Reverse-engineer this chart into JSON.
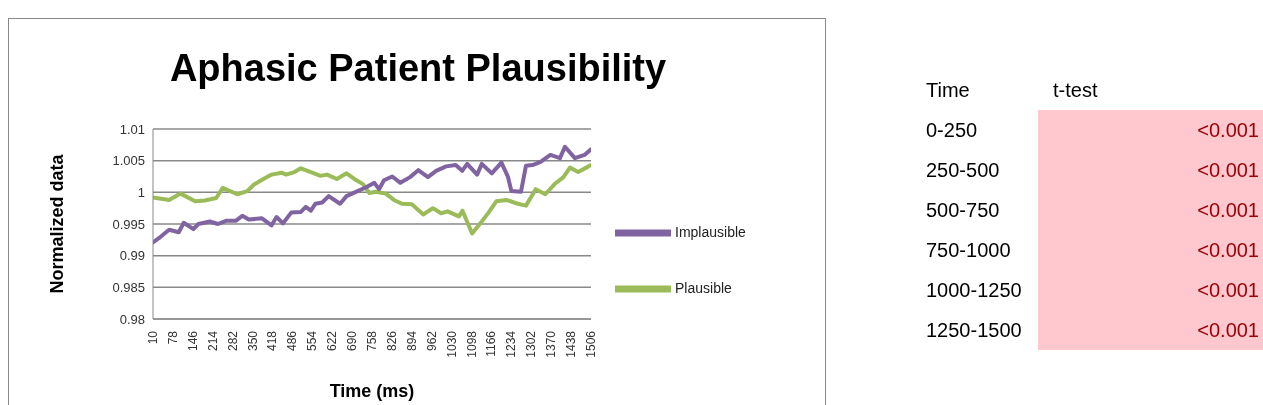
{
  "chart_data": [
    {
      "type": "line",
      "title": "Aphasic Patient Plausibility",
      "xlabel": "Time (ms)",
      "ylabel": "Normalized data",
      "xlim": [
        10,
        1506
      ],
      "xticks": [
        10,
        78,
        146,
        214,
        282,
        350,
        418,
        486,
        554,
        622,
        690,
        758,
        826,
        894,
        962,
        1030,
        1098,
        1166,
        1234,
        1302,
        1370,
        1438,
        1506
      ],
      "ylim": [
        0.98,
        1.01
      ],
      "yticks": [
        0.98,
        0.985,
        0.99,
        0.995,
        1,
        1.005,
        1.01
      ],
      "grid": "y",
      "legend": "right",
      "marker": "none",
      "line_style": "solid",
      "series": [
        {
          "name": "Plausible",
          "color": "#9bbb59",
          "x": [
            10,
            65,
            104,
            154,
            187,
            226,
            248,
            298,
            332,
            354,
            387,
            415,
            449,
            465,
            493,
            515,
            549,
            582,
            604,
            638,
            671,
            705,
            727,
            749,
            771,
            805,
            833,
            860,
            894,
            933,
            966,
            994,
            1016,
            1055,
            1067,
            1100,
            1128,
            1156,
            1183,
            1217,
            1256,
            1284,
            1317,
            1350,
            1384,
            1412,
            1434,
            1462,
            1490,
            1506
          ],
          "values": [
            0.9992,
            0.9988,
            0.9998,
            0.9986,
            0.9987,
            0.9991,
            1.0007,
            0.9997,
            1.0002,
            1.0012,
            1.0021,
            1.0028,
            1.0031,
            1.0028,
            1.0032,
            1.0038,
            1.0032,
            1.0026,
            1.0028,
            1.0021,
            1.003,
            1.0019,
            1.0013,
            0.9999,
            1.0001,
            0.9998,
            0.9988,
            0.9982,
            0.9981,
            0.9965,
            0.9975,
            0.9967,
            0.997,
            0.9962,
            0.9971,
            0.9935,
            0.9951,
            0.9968,
            0.9986,
            0.9988,
            0.9982,
            0.9979,
            1.0005,
            0.9997,
            1.0014,
            1.0024,
            1.0039,
            1.0032,
            1.0039,
            1.0043
          ]
        },
        {
          "name": "Implausible",
          "color": "#8064a2",
          "x": [
            10,
            31,
            65,
            98,
            115,
            148,
            165,
            204,
            232,
            259,
            293,
            315,
            337,
            382,
            415,
            432,
            454,
            482,
            515,
            532,
            549,
            565,
            588,
            610,
            649,
            671,
            705,
            738,
            766,
            782,
            799,
            827,
            855,
            888,
            916,
            949,
            977,
            1011,
            1044,
            1066,
            1083,
            1117,
            1133,
            1167,
            1200,
            1222,
            1234,
            1267,
            1284,
            1306,
            1334,
            1367,
            1400,
            1417,
            1451,
            1484,
            1506
          ],
          "values": [
            0.9921,
            0.9928,
            0.9941,
            0.9937,
            0.9952,
            0.9942,
            0.995,
            0.9954,
            0.995,
            0.9955,
            0.9955,
            0.9963,
            0.9957,
            0.9959,
            0.9948,
            0.9961,
            0.9951,
            0.9968,
            0.9969,
            0.9977,
            0.9971,
            0.9982,
            0.9984,
            0.9994,
            0.9982,
            0.9994,
            1.0001,
            1.0008,
            1.0015,
            1.0005,
            1.0019,
            1.0025,
            1.0015,
            1.0024,
            1.0035,
            1.0024,
            1.0034,
            1.0041,
            1.0043,
            1.0034,
            1.0045,
            1.0028,
            1.0045,
            1.003,
            1.0047,
            1.0025,
            1.0002,
            1.0001,
            1.0042,
            1.0043,
            1.0048,
            1.0059,
            1.0054,
            1.0072,
            1.0054,
            1.0059,
            1.0068
          ]
        }
      ]
    },
    {
      "type": "other",
      "color": "#ffc7ce",
      "annotations": [
        "Time",
        "t-test",
        "0-250",
        "<0.001",
        "250-500",
        "<0.001",
        "500-750",
        "<0.001",
        "750-1000",
        "<0.001",
        "1000-1250",
        "<0.001",
        "1250-1500",
        "<0.001"
      ]
    }
  ]
}
